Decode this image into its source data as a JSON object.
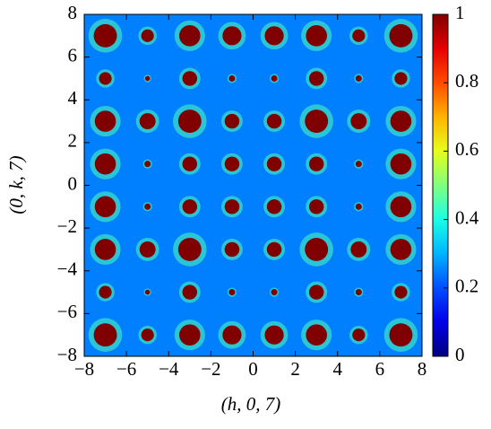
{
  "chart_data": {
    "type": "heatmap",
    "colormap": "jet",
    "x_label": "(h, 0, 7)",
    "y_label": "(0, k, 7)",
    "xlim": [
      -8,
      8
    ],
    "ylim": [
      -8,
      8
    ],
    "xticks": [
      {
        "value": -8,
        "label": "−8"
      },
      {
        "value": -6,
        "label": "−6"
      },
      {
        "value": -4,
        "label": "−4"
      },
      {
        "value": -2,
        "label": "−2"
      },
      0,
      2,
      4,
      6,
      8
    ],
    "yticks": [
      {
        "value": -8,
        "label": "−8"
      },
      {
        "value": -6,
        "label": "−6"
      },
      {
        "value": -4,
        "label": "−4"
      },
      {
        "value": -2,
        "label": "−2"
      },
      0,
      2,
      4,
      6,
      8
    ],
    "clim": [
      0,
      1
    ],
    "cticks": [
      0,
      0.2,
      0.4,
      0.6,
      0.8,
      1
    ],
    "background_value": 0.25,
    "x": [
      -7,
      -5,
      -3,
      -1,
      1,
      3,
      5,
      7,
      -7,
      -5,
      -3,
      -1,
      1,
      3,
      5,
      7,
      -7,
      -5,
      -3,
      -1,
      1,
      3,
      5,
      7,
      -7,
      -5,
      -3,
      -1,
      1,
      3,
      5,
      7,
      -7,
      -5,
      -3,
      -1,
      1,
      3,
      5,
      7,
      -7,
      -5,
      -3,
      -1,
      1,
      3,
      5,
      7,
      -7,
      -5,
      -3,
      -1,
      1,
      3,
      5,
      7,
      -7,
      -5,
      -3,
      -1,
      1,
      3,
      5,
      7
    ],
    "y": [
      7,
      7,
      7,
      7,
      7,
      7,
      7,
      7,
      5,
      5,
      5,
      5,
      5,
      5,
      5,
      5,
      3,
      3,
      3,
      3,
      3,
      3,
      3,
      3,
      1,
      1,
      1,
      1,
      1,
      1,
      1,
      1,
      -1,
      -1,
      -1,
      -1,
      -1,
      -1,
      -1,
      -1,
      -3,
      -3,
      -3,
      -3,
      -3,
      -3,
      -3,
      -3,
      -5,
      -5,
      -5,
      -5,
      -5,
      -5,
      -5,
      -5,
      -7,
      -7,
      -7,
      -7,
      -7,
      -7,
      -7,
      -7
    ],
    "values": [
      1,
      1,
      1,
      1,
      1,
      1,
      1,
      1,
      1,
      1,
      1,
      1,
      1,
      1,
      1,
      1,
      1,
      1,
      1,
      1,
      1,
      1,
      1,
      1,
      1,
      1,
      1,
      1,
      1,
      1,
      1,
      1,
      1,
      1,
      1,
      1,
      1,
      1,
      1,
      1,
      1,
      1,
      1,
      1,
      1,
      1,
      1,
      1,
      1,
      1,
      1,
      1,
      1,
      1,
      1,
      1,
      1,
      1,
      1,
      1,
      1,
      1,
      1,
      1
    ],
    "sizes": [
      0.55,
      0.3,
      0.5,
      0.45,
      0.45,
      0.5,
      0.3,
      0.55,
      0.3,
      0.12,
      0.35,
      0.15,
      0.15,
      0.35,
      0.15,
      0.3,
      0.5,
      0.38,
      0.55,
      0.35,
      0.35,
      0.55,
      0.38,
      0.5,
      0.5,
      0.15,
      0.35,
      0.35,
      0.35,
      0.35,
      0.15,
      0.5,
      0.5,
      0.15,
      0.35,
      0.35,
      0.35,
      0.35,
      0.15,
      0.5,
      0.5,
      0.38,
      0.55,
      0.35,
      0.35,
      0.55,
      0.38,
      0.5,
      0.3,
      0.12,
      0.35,
      0.15,
      0.15,
      0.35,
      0.15,
      0.3,
      0.55,
      0.3,
      0.5,
      0.45,
      0.45,
      0.5,
      0.3,
      0.55
    ]
  }
}
